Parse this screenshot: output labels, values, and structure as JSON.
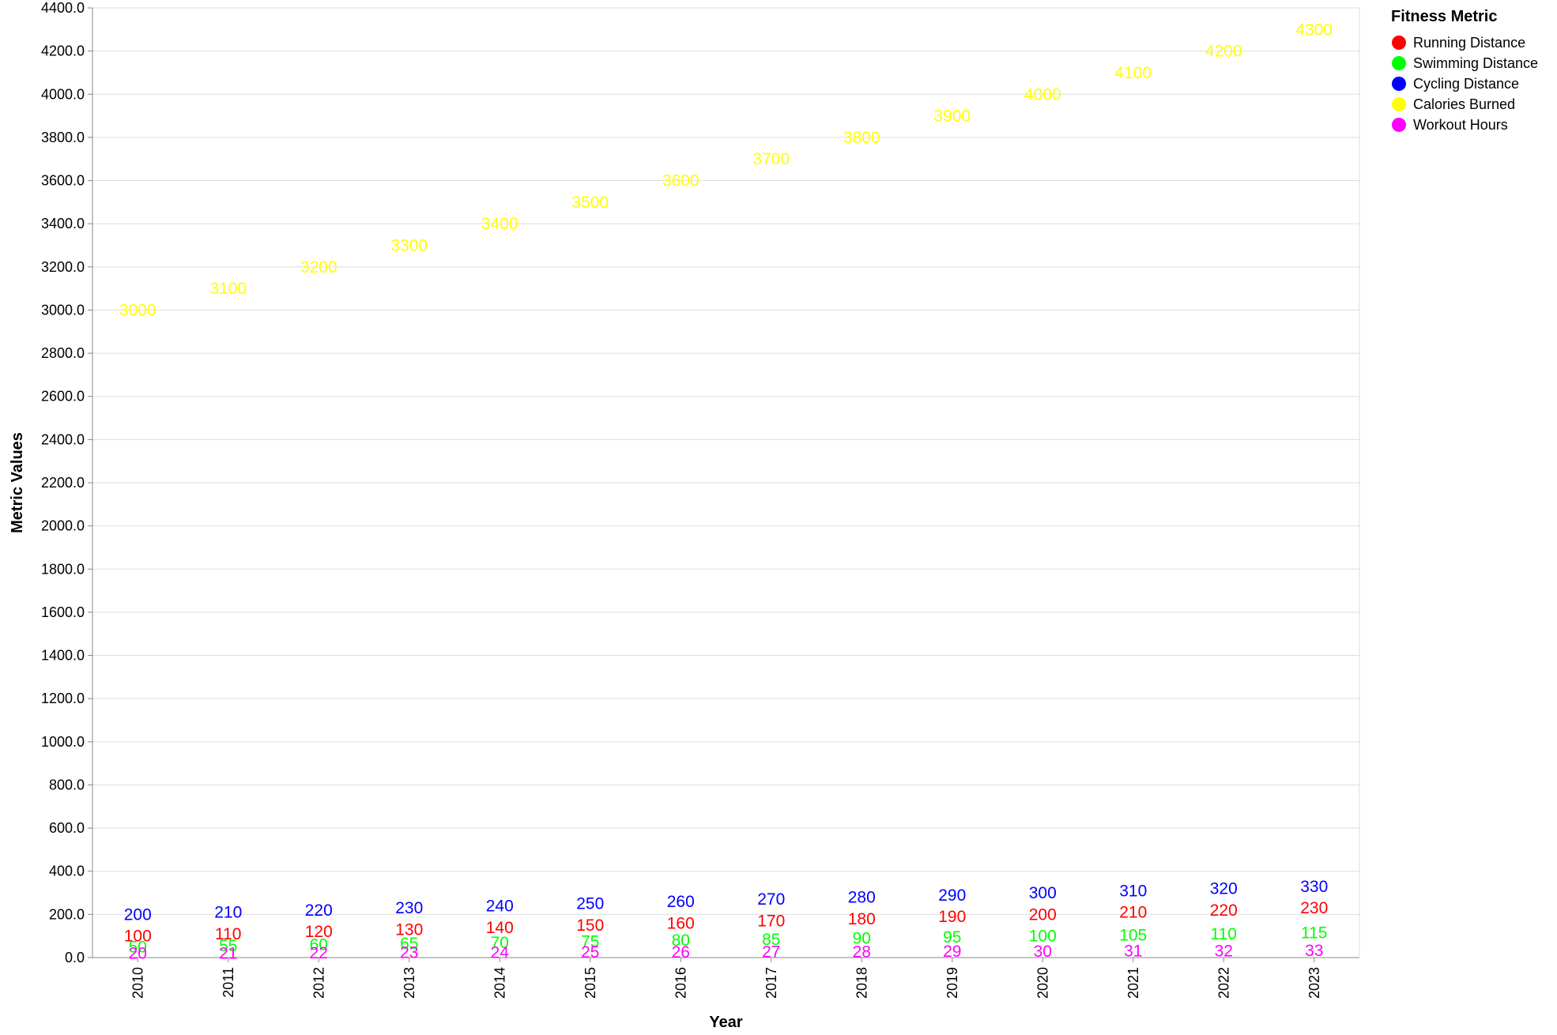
{
  "chart_data": {
    "type": "scatter",
    "mark": "text",
    "xlabel": "Year",
    "ylabel": "Metric Values",
    "x": [
      "2010",
      "2011",
      "2012",
      "2013",
      "2014",
      "2015",
      "2016",
      "2017",
      "2018",
      "2019",
      "2020",
      "2021",
      "2022",
      "2023"
    ],
    "ylim": [
      0,
      4400
    ],
    "y_tick_step": 200,
    "y_tick_format": "fixed-1",
    "grid": true,
    "legend": {
      "title": "Fitness Metric",
      "position": "top-right"
    },
    "series": [
      {
        "name": "Running Distance",
        "color": "#ff0000",
        "values": [
          100,
          110,
          120,
          130,
          140,
          150,
          160,
          170,
          180,
          190,
          200,
          210,
          220,
          230
        ]
      },
      {
        "name": "Swimming Distance",
        "color": "#00ff00",
        "values": [
          50,
          55,
          60,
          65,
          70,
          75,
          80,
          85,
          90,
          95,
          100,
          105,
          110,
          115
        ]
      },
      {
        "name": "Cycling Distance",
        "color": "#0000ff",
        "values": [
          200,
          210,
          220,
          230,
          240,
          250,
          260,
          270,
          280,
          290,
          300,
          310,
          320,
          330
        ]
      },
      {
        "name": "Calories Burned",
        "color": "#ffff00",
        "values": [
          3000,
          3100,
          3200,
          3300,
          3400,
          3500,
          3600,
          3700,
          3800,
          3900,
          4000,
          4100,
          4200,
          4300
        ]
      },
      {
        "name": "Workout Hours",
        "color": "#ff00ff",
        "values": [
          20,
          21,
          22,
          23,
          24,
          25,
          26,
          27,
          28,
          29,
          30,
          31,
          32,
          33
        ]
      }
    ]
  }
}
